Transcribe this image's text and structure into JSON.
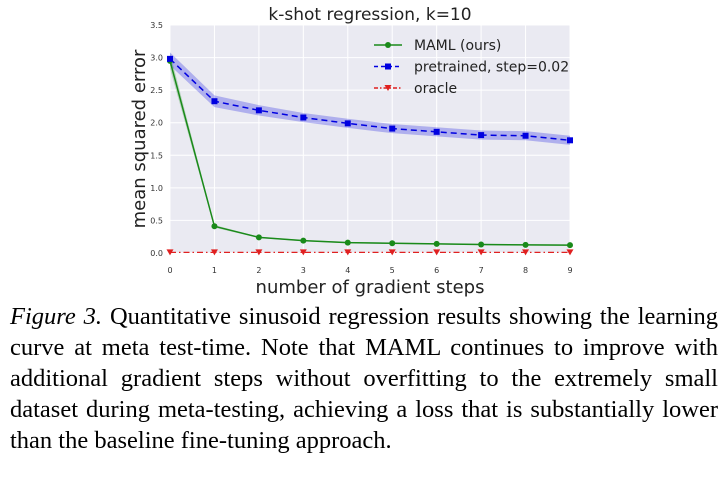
{
  "chart_data": {
    "type": "line",
    "title": "k-shot regression, k=10",
    "xlabel": "number of gradient steps",
    "ylabel": "mean squared error",
    "xlim": [
      0,
      9
    ],
    "ylim": [
      0,
      3.5
    ],
    "x_ticks": [
      "0",
      "1",
      "2",
      "3",
      "4",
      "5",
      "6",
      "7",
      "8",
      "9"
    ],
    "y_ticks": [
      "0.0",
      "0.5",
      "1.0",
      "1.5",
      "2.0",
      "2.5",
      "3.0",
      "3.5"
    ],
    "grid": true,
    "legend_position": "top-right",
    "x": [
      0,
      1,
      2,
      3,
      4,
      5,
      6,
      7,
      8,
      9
    ],
    "series": [
      {
        "name": "MAML (ours)",
        "color": "#1a8a1a",
        "style": "solid",
        "marker": "circle",
        "values": [
          2.95,
          0.41,
          0.24,
          0.19,
          0.16,
          0.15,
          0.14,
          0.13,
          0.125,
          0.12
        ],
        "band": [
          0.12,
          0.02,
          0.01,
          0.01,
          0.01,
          0.01,
          0.01,
          0.01,
          0.01,
          0.01
        ]
      },
      {
        "name": "pretrained, step=0.02",
        "color": "#0000e0",
        "style": "dashed",
        "marker": "square",
        "values": [
          2.98,
          2.33,
          2.19,
          2.08,
          1.99,
          1.91,
          1.86,
          1.81,
          1.8,
          1.73
        ],
        "band": [
          0.1,
          0.09,
          0.08,
          0.07,
          0.07,
          0.07,
          0.07,
          0.07,
          0.07,
          0.07
        ]
      },
      {
        "name": "oracle",
        "color": "#e02020",
        "style": "dashdot",
        "marker": "triangle-down",
        "values": [
          0.01,
          0.01,
          0.01,
          0.01,
          0.01,
          0.01,
          0.01,
          0.01,
          0.01,
          0.01
        ],
        "band": [
          0,
          0,
          0,
          0,
          0,
          0,
          0,
          0,
          0,
          0
        ]
      }
    ]
  },
  "caption": {
    "label": "Figure 3.",
    "text": " Quantitative sinusoid regression results showing the learning curve at meta test-time. Note that MAML continues to improve with additional gradient steps without overfitting to the extremely small dataset during meta-testing, achieving a loss that is substantially lower than the baseline fine-tuning approach."
  }
}
